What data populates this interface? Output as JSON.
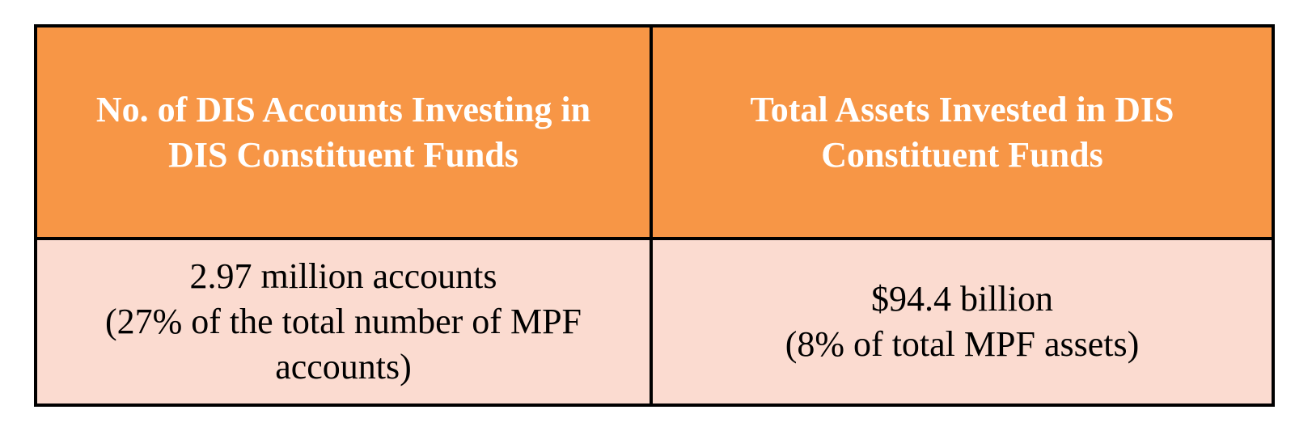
{
  "table": {
    "colors": {
      "header_background": "#f79646",
      "header_text": "#ffffff",
      "value_background": "#fbdbd0",
      "border": "#000000"
    },
    "headers": [
      {
        "lines": [
          "No. of DIS Accounts Investing in",
          "DIS Constituent Funds"
        ]
      },
      {
        "lines": [
          "Total Assets Invested in DIS",
          "Constituent Funds"
        ]
      }
    ],
    "values": [
      {
        "lines": [
          "2.97 million accounts",
          "(27% of the total number of MPF",
          "accounts)"
        ]
      },
      {
        "lines": [
          "$94.4 billion",
          "(8% of total MPF assets)"
        ]
      }
    ]
  }
}
